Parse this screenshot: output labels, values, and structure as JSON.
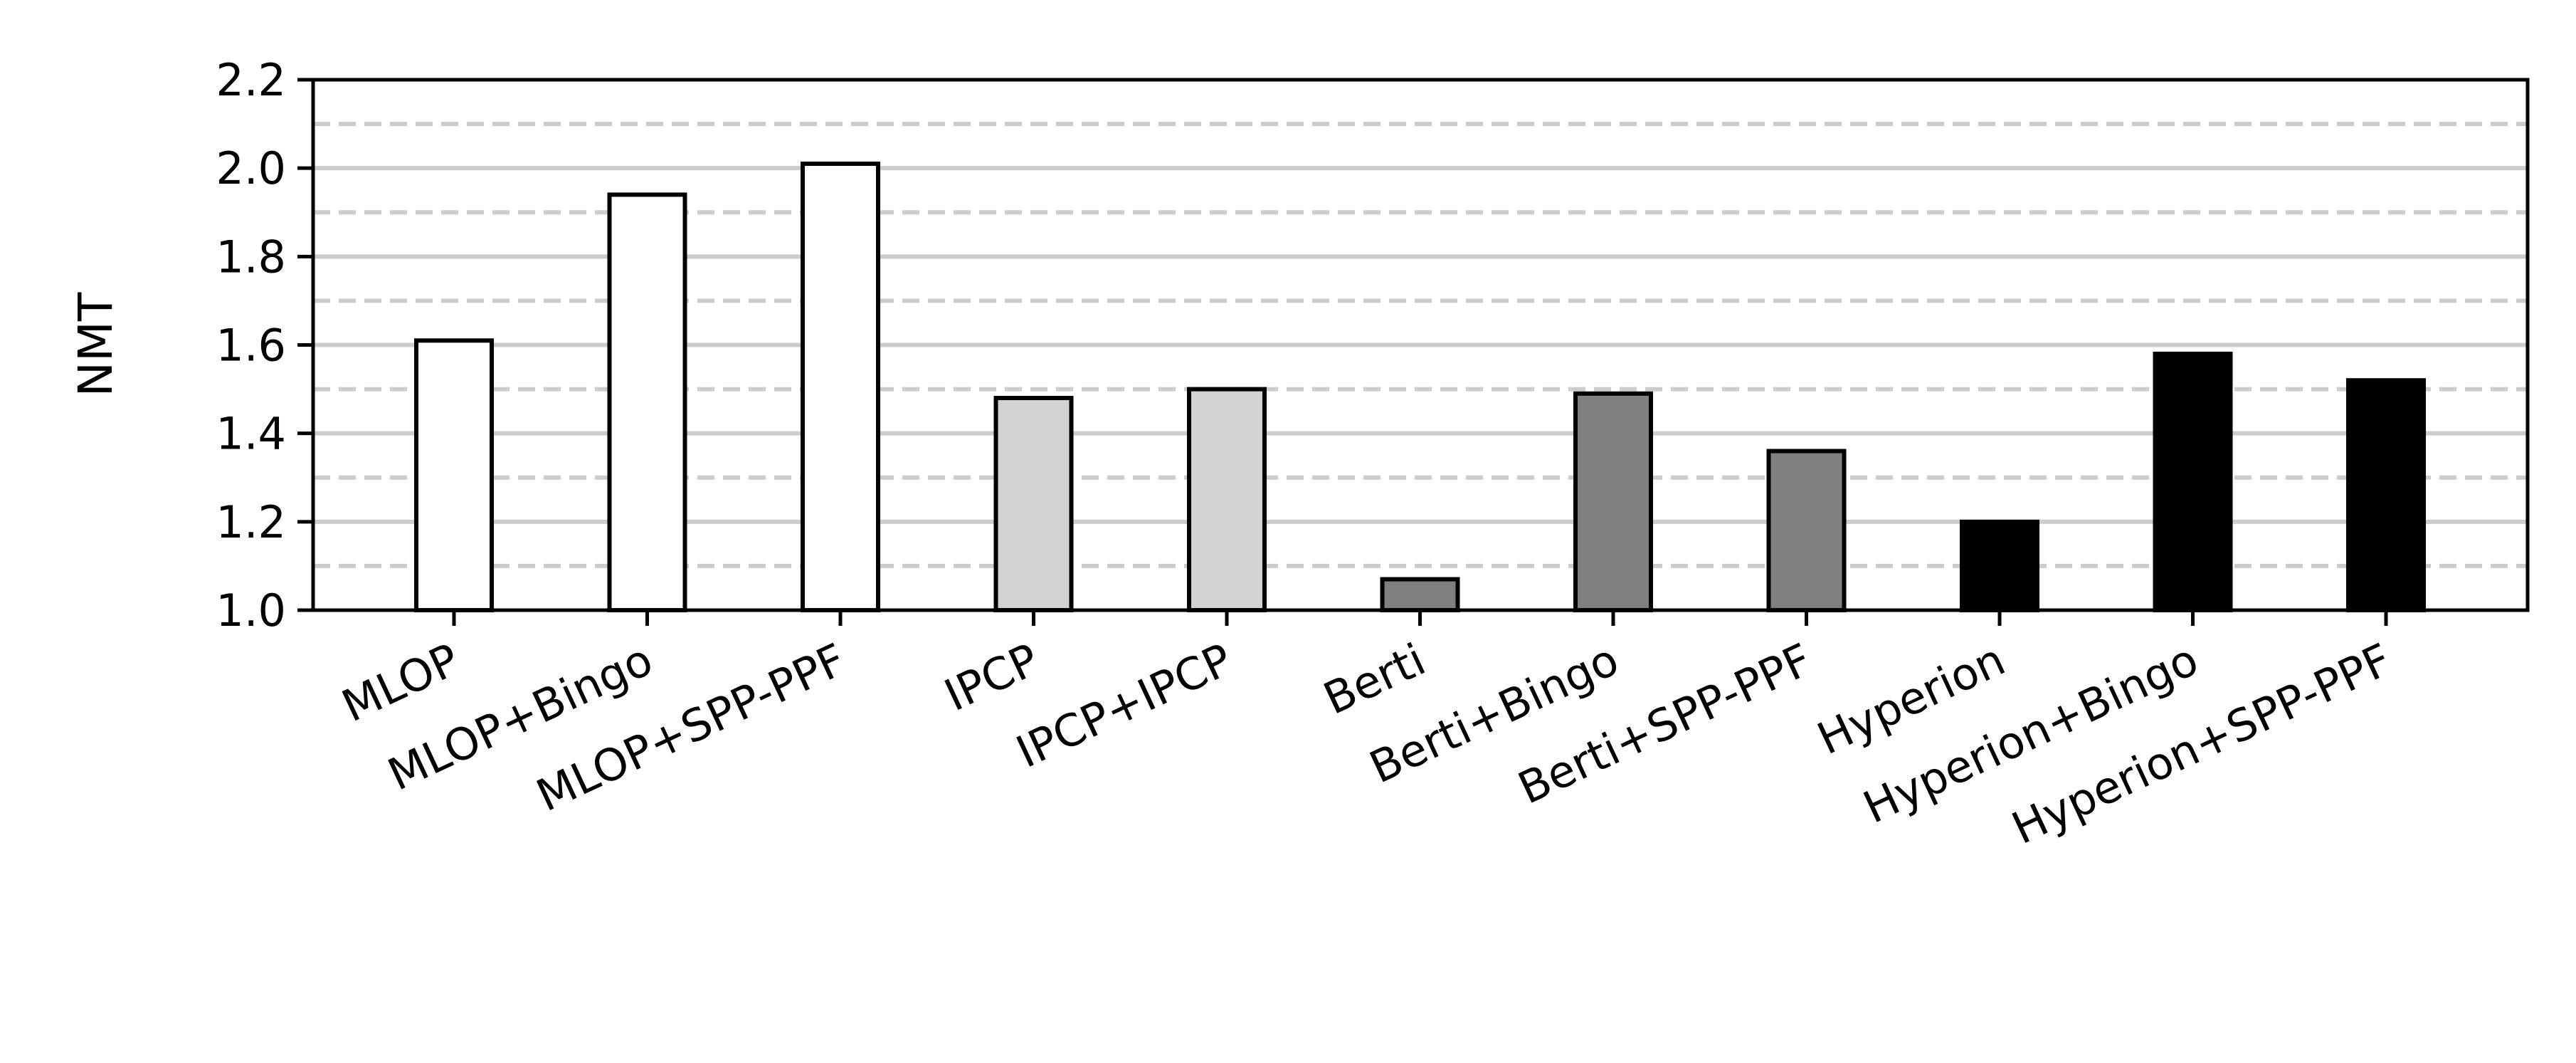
{
  "chart_data": {
    "type": "bar",
    "title": "",
    "xlabel": "",
    "ylabel": "NMT",
    "ylim": [
      1.0,
      2.2
    ],
    "yticks": [
      "1.0",
      "1.2",
      "1.4",
      "1.6",
      "1.8",
      "2.0",
      "2.2"
    ],
    "grid": "horizontal: solid at major ticks, dashed at minor ticks",
    "legend": "none",
    "categories": [
      "MLOP",
      "MLOP+Bingo",
      "MLOP+SPP-PPF",
      "IPCP",
      "IPCP+IPCP",
      "Berti",
      "Berti+Bingo",
      "Berti+SPP-PPF",
      "Hyperion",
      "Hyperion+Bingo",
      "Hyperion+SPP-PPF"
    ],
    "values": [
      1.61,
      1.94,
      2.01,
      1.48,
      1.5,
      1.07,
      1.49,
      1.36,
      1.2,
      1.58,
      1.52
    ],
    "bar_colors": [
      "#ffffff",
      "#ffffff",
      "#ffffff",
      "#d3d3d3",
      "#d3d3d3",
      "#808080",
      "#808080",
      "#808080",
      "#000000",
      "#000000",
      "#000000"
    ],
    "colors": {
      "edge": "#000000",
      "grid": "#cccccc"
    }
  }
}
